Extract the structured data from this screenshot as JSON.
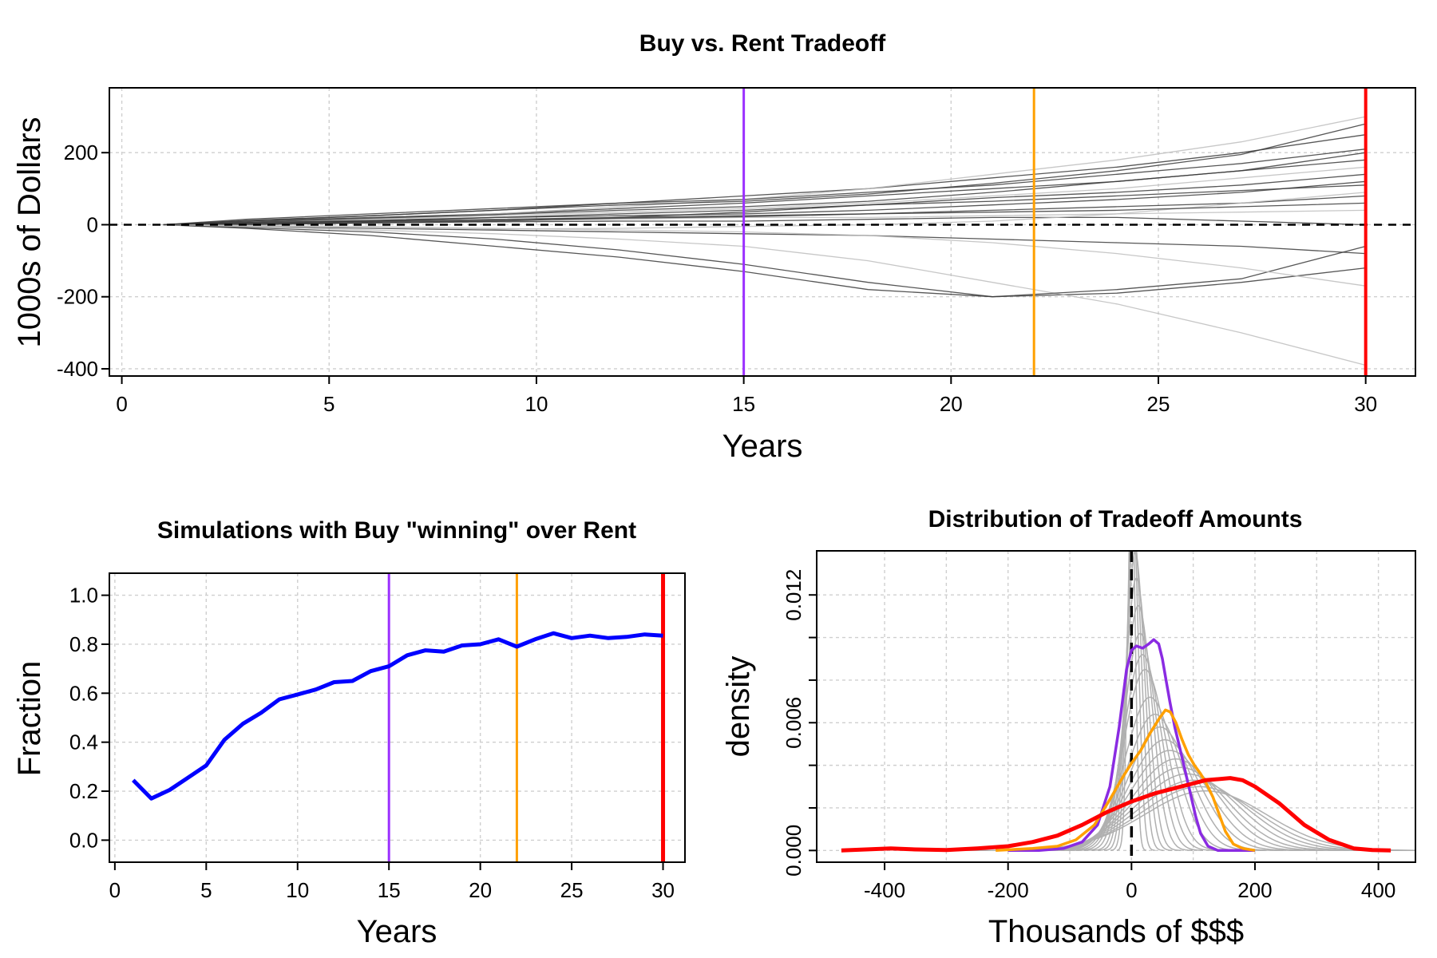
{
  "chart_data": [
    {
      "type": "line",
      "title": "Buy vs. Rent Tradeoff",
      "xlabel": "Years",
      "ylabel": "1000s of Dollars",
      "xlim": [
        -0.3,
        31.2
      ],
      "ylim": [
        -420,
        380
      ],
      "x_ticks": [
        0,
        5,
        10,
        15,
        20,
        25,
        30
      ],
      "y_ticks": [
        -400,
        -200,
        0,
        200
      ],
      "y_tick_labels": [
        "-400",
        "-200",
        "0",
        "200"
      ],
      "grid": true,
      "vlines": [
        {
          "x": 15,
          "color": "#9b30ff"
        },
        {
          "x": 22,
          "color": "#ffa000"
        },
        {
          "x": 30,
          "color": "#ff0000"
        }
      ],
      "hline": {
        "y": 0,
        "style": "dashed"
      },
      "series_color_dark": "#3a3a3a",
      "series_color_light": "#bdbdbd",
      "series": [
        {
          "x": [
            1,
            3,
            6,
            9,
            12,
            15,
            18,
            21,
            24,
            27,
            30
          ],
          "values": [
            0,
            15,
            30,
            45,
            60,
            80,
            100,
            130,
            160,
            200,
            250
          ]
        },
        {
          "x": [
            1,
            3,
            6,
            9,
            12,
            15,
            18,
            21,
            24,
            27,
            30
          ],
          "values": [
            0,
            10,
            20,
            30,
            45,
            60,
            80,
            100,
            120,
            150,
            200
          ]
        },
        {
          "x": [
            1,
            3,
            6,
            9,
            12,
            15,
            18,
            21,
            24,
            27,
            30
          ],
          "values": [
            0,
            8,
            15,
            25,
            35,
            45,
            60,
            80,
            100,
            130,
            160
          ]
        },
        {
          "x": [
            1,
            3,
            6,
            9,
            12,
            15,
            18,
            21,
            24,
            27,
            30
          ],
          "values": [
            0,
            5,
            10,
            20,
            25,
            30,
            40,
            55,
            70,
            90,
            120
          ]
        },
        {
          "x": [
            1,
            3,
            6,
            9,
            12,
            15,
            18,
            21,
            24,
            27,
            30
          ],
          "values": [
            0,
            5,
            10,
            15,
            20,
            25,
            30,
            40,
            50,
            60,
            80
          ]
        },
        {
          "x": [
            1,
            3,
            6,
            9,
            12,
            15,
            18,
            21,
            24,
            27,
            30
          ],
          "values": [
            0,
            3,
            6,
            10,
            15,
            20,
            20,
            25,
            30,
            35,
            40
          ]
        },
        {
          "x": [
            1,
            3,
            6,
            9,
            12,
            15,
            18,
            21,
            24,
            27,
            30
          ],
          "values": [
            0,
            2,
            5,
            8,
            10,
            10,
            15,
            20,
            20,
            10,
            0
          ]
        },
        {
          "x": [
            1,
            3,
            6,
            9,
            12,
            15,
            18,
            21,
            24,
            27,
            30
          ],
          "values": [
            0,
            -5,
            -10,
            -15,
            -20,
            -25,
            -30,
            -40,
            -50,
            -60,
            -80
          ]
        },
        {
          "x": [
            1,
            3,
            6,
            9,
            12,
            15,
            18,
            21,
            24,
            27,
            30
          ],
          "values": [
            0,
            5,
            15,
            30,
            50,
            70,
            100,
            140,
            180,
            230,
            300
          ]
        },
        {
          "x": [
            1,
            3,
            6,
            9,
            12,
            15,
            18,
            21,
            24,
            27,
            30
          ],
          "values": [
            0,
            10,
            25,
            40,
            60,
            70,
            90,
            110,
            140,
            170,
            210
          ]
        },
        {
          "x": [
            1,
            3,
            6,
            9,
            12,
            15,
            18,
            21,
            24,
            27,
            30
          ],
          "values": [
            0,
            -8,
            -20,
            -40,
            -70,
            -110,
            -160,
            -200,
            -190,
            -160,
            -120
          ]
        },
        {
          "x": [
            1,
            3,
            6,
            9,
            12,
            15,
            18,
            21,
            24,
            27,
            30
          ],
          "values": [
            0,
            -5,
            -15,
            -25,
            -40,
            -60,
            -100,
            -160,
            -220,
            -300,
            -390
          ]
        },
        {
          "x": [
            1,
            3,
            6,
            9,
            12,
            15,
            18,
            21,
            24,
            27,
            30
          ],
          "values": [
            0,
            -10,
            -30,
            -60,
            -90,
            -130,
            -180,
            -200,
            -180,
            -150,
            -60
          ]
        },
        {
          "x": [
            1,
            3,
            6,
            9,
            12,
            15,
            18,
            21,
            24,
            27,
            30
          ],
          "values": [
            0,
            0,
            5,
            10,
            20,
            35,
            55,
            75,
            90,
            110,
            140
          ]
        },
        {
          "x": [
            1,
            3,
            6,
            9,
            12,
            15,
            18,
            21,
            24,
            27,
            30
          ],
          "values": [
            0,
            -3,
            -8,
            -12,
            -10,
            -5,
            0,
            10,
            30,
            60,
            90
          ]
        },
        {
          "x": [
            1,
            3,
            6,
            9,
            12,
            15,
            18,
            21,
            24,
            27,
            30
          ],
          "values": [
            0,
            6,
            12,
            20,
            30,
            40,
            55,
            65,
            80,
            95,
            110
          ]
        },
        {
          "x": [
            1,
            3,
            6,
            9,
            12,
            15,
            18,
            21,
            24,
            27,
            30
          ],
          "values": [
            0,
            4,
            8,
            12,
            18,
            22,
            30,
            35,
            40,
            50,
            60
          ]
        },
        {
          "x": [
            1,
            3,
            6,
            9,
            12,
            15,
            18,
            21,
            24,
            27,
            30
          ],
          "values": [
            0,
            -2,
            -5,
            -10,
            -15,
            -20,
            -30,
            -50,
            -80,
            -120,
            -170
          ]
        },
        {
          "x": [
            1,
            3,
            6,
            9,
            12,
            15,
            18,
            21,
            24,
            27,
            30
          ],
          "values": [
            0,
            12,
            25,
            40,
            55,
            65,
            85,
            115,
            150,
            195,
            280
          ]
        },
        {
          "x": [
            1,
            3,
            6,
            9,
            12,
            15,
            18,
            21,
            24,
            27,
            30
          ],
          "values": [
            0,
            7,
            18,
            28,
            40,
            50,
            65,
            90,
            120,
            150,
            180
          ]
        }
      ]
    },
    {
      "type": "line",
      "title": "Simulations with Buy \"winning\" over Rent",
      "xlabel": "Years",
      "ylabel": "Fraction",
      "xlim": [
        -0.3,
        31.2
      ],
      "ylim": [
        -0.09,
        1.09
      ],
      "x_ticks": [
        0,
        5,
        10,
        15,
        20,
        25,
        30
      ],
      "y_ticks": [
        0.0,
        0.2,
        0.4,
        0.6,
        0.8,
        1.0
      ],
      "y_tick_labels": [
        "0.0",
        "0.2",
        "0.4",
        "0.6",
        "0.8",
        "1.0"
      ],
      "grid": true,
      "vlines": [
        {
          "x": 15,
          "color": "#9b30ff"
        },
        {
          "x": 22,
          "color": "#ffa000"
        },
        {
          "x": 30,
          "color": "#ff0000"
        }
      ],
      "series_color": "#0000ff",
      "x": [
        1,
        2,
        3,
        4,
        5,
        6,
        7,
        8,
        9,
        10,
        11,
        12,
        13,
        14,
        15,
        16,
        17,
        18,
        19,
        20,
        21,
        22,
        23,
        24,
        25,
        26,
        27,
        28,
        29,
        30
      ],
      "values": [
        0.245,
        0.17,
        0.205,
        0.255,
        0.305,
        0.41,
        0.475,
        0.52,
        0.575,
        0.595,
        0.615,
        0.645,
        0.65,
        0.69,
        0.71,
        0.755,
        0.775,
        0.77,
        0.795,
        0.8,
        0.82,
        0.79,
        0.82,
        0.845,
        0.825,
        0.835,
        0.825,
        0.83,
        0.84,
        0.835
      ]
    },
    {
      "type": "line",
      "title": "Distribution of Tradeoff Amounts",
      "xlabel": "Thousands of $$$",
      "ylabel": "density",
      "xlim": [
        -510,
        460
      ],
      "ylim": [
        -0.00055,
        0.01407
      ],
      "x_ticks": [
        -400,
        -200,
        0,
        200,
        400
      ],
      "x_tick_labels": [
        "-400",
        "-200",
        "0",
        "200",
        "400"
      ],
      "y_ticks": [
        0.0,
        0.002,
        0.004,
        0.006,
        0.008,
        0.01,
        0.012
      ],
      "y_tick_labels": [
        "0.000",
        "0.006",
        "0.012"
      ],
      "y_tick_labeled": [
        0.0,
        0.006,
        0.012
      ],
      "grid": true,
      "vline": {
        "x": 0,
        "style": "dashed"
      },
      "grey_color": "#b0b0b0",
      "grey_curves": [
        {
          "mu": 0,
          "sd": 6,
          "amp": 0.0175
        },
        {
          "mu": 2,
          "sd": 9,
          "amp": 0.0162
        },
        {
          "mu": 4,
          "sd": 12,
          "amp": 0.015
        },
        {
          "mu": 6,
          "sd": 15,
          "amp": 0.014
        },
        {
          "mu": 8,
          "sd": 18,
          "amp": 0.0128
        },
        {
          "mu": 11,
          "sd": 22,
          "amp": 0.0115
        },
        {
          "mu": 14,
          "sd": 26,
          "amp": 0.0102
        },
        {
          "mu": 18,
          "sd": 30,
          "amp": 0.0092
        },
        {
          "mu": 22,
          "sd": 34,
          "amp": 0.0085
        },
        {
          "mu": 30,
          "sd": 40,
          "amp": 0.0072
        },
        {
          "mu": 38,
          "sd": 45,
          "amp": 0.0064
        },
        {
          "mu": 46,
          "sd": 50,
          "amp": 0.0058
        },
        {
          "mu": 54,
          "sd": 56,
          "amp": 0.0052
        },
        {
          "mu": 62,
          "sd": 62,
          "amp": 0.0047
        },
        {
          "mu": 72,
          "sd": 68,
          "amp": 0.0043
        },
        {
          "mu": 80,
          "sd": 74,
          "amp": 0.0039
        },
        {
          "mu": 90,
          "sd": 80,
          "amp": 0.0036
        },
        {
          "mu": 100,
          "sd": 86,
          "amp": 0.0033
        },
        {
          "mu": 110,
          "sd": 92,
          "amp": 0.003
        },
        {
          "mu": 120,
          "sd": 98,
          "amp": 0.0028
        }
      ],
      "highlight_series": [
        {
          "color": "#8a2be2",
          "x": [
            -200,
            -150,
            -110,
            -80,
            -55,
            -35,
            -20,
            -8,
            0,
            8,
            18,
            28,
            36,
            44,
            50,
            56,
            62,
            70,
            80,
            88,
            96,
            104,
            112,
            124,
            140,
            160,
            200
          ],
          "values": [
            0,
            0,
            0.0001,
            0.0004,
            0.0012,
            0.003,
            0.0058,
            0.0085,
            0.0094,
            0.0096,
            0.0095,
            0.0097,
            0.0099,
            0.0097,
            0.009,
            0.008,
            0.007,
            0.0058,
            0.0046,
            0.0036,
            0.0026,
            0.0016,
            0.0008,
            0.0002,
            0,
            0,
            0
          ]
        },
        {
          "color": "#ffa000",
          "x": [
            -220,
            -160,
            -120,
            -90,
            -60,
            -35,
            -15,
            0,
            15,
            30,
            45,
            55,
            63,
            72,
            82,
            92,
            102,
            112,
            122,
            132,
            142,
            152,
            165,
            180,
            200
          ],
          "values": [
            0,
            0.0001,
            0.0002,
            0.0005,
            0.0012,
            0.0024,
            0.0034,
            0.0041,
            0.0047,
            0.0055,
            0.0062,
            0.0066,
            0.0065,
            0.006,
            0.0052,
            0.0045,
            0.004,
            0.0036,
            0.0031,
            0.0025,
            0.0017,
            0.0009,
            0.0003,
            0.0001,
            0
          ]
        },
        {
          "color": "#ff0000",
          "x": [
            -470,
            -430,
            -390,
            -350,
            -300,
            -250,
            -200,
            -160,
            -120,
            -80,
            -40,
            0,
            40,
            80,
            120,
            160,
            180,
            200,
            240,
            280,
            320,
            360,
            390,
            420
          ],
          "values": [
            0,
            5e-05,
            0.0001,
            5e-05,
            2e-05,
            0.0001,
            0.0002,
            0.0004,
            0.0007,
            0.0012,
            0.0018,
            0.0023,
            0.0027,
            0.003,
            0.0033,
            0.0034,
            0.0033,
            0.003,
            0.0022,
            0.0012,
            0.0005,
            0.0001,
            2e-05,
            0
          ]
        }
      ]
    }
  ]
}
